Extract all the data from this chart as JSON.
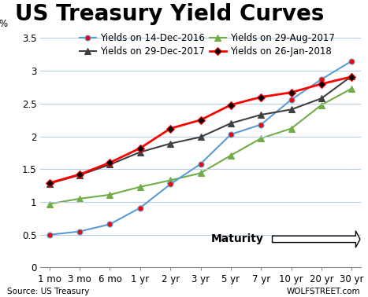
{
  "title": "US Treasury Yield Curves",
  "ylabel": "%",
  "source_left": "Source: US Treasury",
  "source_right": "WOLFSTREET.com",
  "maturity_labels": [
    "1 mo",
    "3 mo",
    "6 mo",
    "1 yr",
    "2 yr",
    "3 yr",
    "5 yr",
    "7 yr",
    "10 yr",
    "20 yr",
    "30 yr"
  ],
  "x": [
    0,
    1,
    2,
    3,
    4,
    5,
    6,
    7,
    8,
    9,
    10
  ],
  "series": [
    {
      "label": "Yields on 14-Dec-2016",
      "values": [
        0.5,
        0.55,
        0.66,
        0.91,
        1.27,
        1.58,
        2.03,
        2.18,
        2.56,
        2.87,
        3.15
      ],
      "color": "#5b9bd5",
      "marker": "o",
      "markersize": 5,
      "linewidth": 1.5,
      "zorder": 2,
      "markerfacecolor": "#ff0000",
      "markeredgecolor": "#5b9bd5"
    },
    {
      "label": "Yields on 29-Dec-2017",
      "values": [
        1.28,
        1.41,
        1.57,
        1.76,
        1.89,
        1.99,
        2.2,
        2.33,
        2.41,
        2.58,
        2.92
      ],
      "color": "#404040",
      "marker": "^",
      "markersize": 6,
      "linewidth": 1.5,
      "zorder": 3,
      "markerfacecolor": "#404040",
      "markeredgecolor": "#404040"
    },
    {
      "label": "Yields on 29-Aug-2017",
      "values": [
        0.97,
        1.05,
        1.11,
        1.23,
        1.33,
        1.44,
        1.71,
        1.97,
        2.12,
        2.48,
        2.73
      ],
      "color": "#70ad47",
      "marker": "^",
      "markersize": 6,
      "linewidth": 1.5,
      "zorder": 1,
      "markerfacecolor": "#70ad47",
      "markeredgecolor": "#70ad47"
    },
    {
      "label": "Yields on 26-Jan-2018",
      "values": [
        1.29,
        1.42,
        1.6,
        1.82,
        2.12,
        2.25,
        2.48,
        2.6,
        2.67,
        2.8,
        2.91
      ],
      "color": "#ff0000",
      "marker": "D",
      "markersize": 5,
      "linewidth": 2.0,
      "zorder": 4,
      "markerfacecolor": "#000000",
      "markeredgecolor": "#ff0000"
    }
  ],
  "legend_order": [
    0,
    2,
    1,
    3
  ],
  "ylim": [
    0,
    3.6
  ],
  "yticks": [
    0,
    0.5,
    1.0,
    1.5,
    2.0,
    2.5,
    3.0,
    3.5
  ],
  "background_color": "#ffffff",
  "plot_background": "#ffffff",
  "grid_color": "#b8cce4",
  "title_fontsize": 20,
  "legend_fontsize": 8.5,
  "tick_fontsize": 8.5,
  "source_fontsize": 7.5,
  "maturity_text": "Maturity",
  "maturity_fontsize": 10
}
